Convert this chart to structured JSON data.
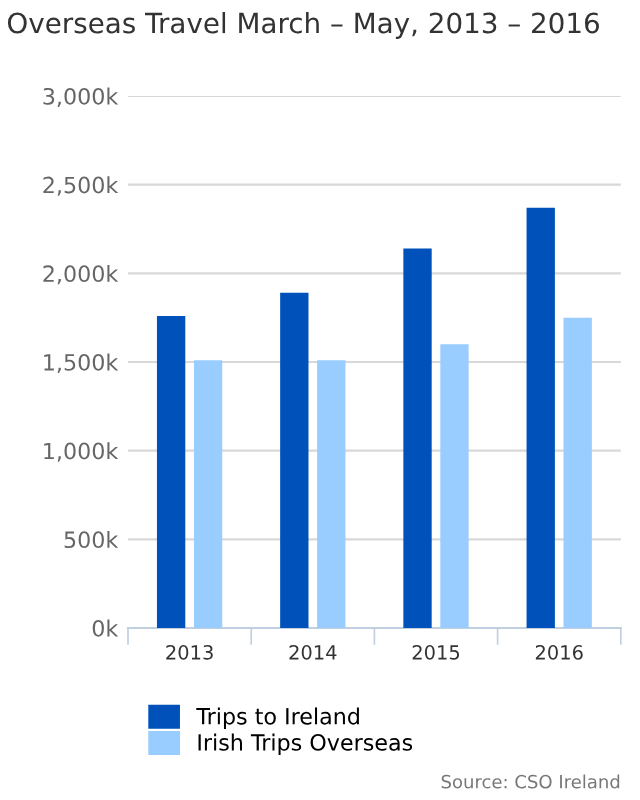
{
  "chart_data": {
    "type": "bar",
    "title": "Overseas Travel March – May, 2013 – 2016",
    "categories": [
      "2013",
      "2014",
      "2015",
      "2016"
    ],
    "series": [
      {
        "name": "Trips to Ireland",
        "color": "#0051ba",
        "values": [
          1760,
          1890,
          2140,
          2370
        ]
      },
      {
        "name": "Irish Trips Overseas",
        "color": "#99ccff",
        "values": [
          1510,
          1510,
          1600,
          1750
        ]
      }
    ],
    "ylim": [
      0,
      3000
    ],
    "yticks": [
      {
        "value": 0,
        "label": "0k"
      },
      {
        "value": 500,
        "label": "500k"
      },
      {
        "value": 1000,
        "label": "1,000k"
      },
      {
        "value": 1500,
        "label": "1,500k"
      },
      {
        "value": 2000,
        "label": "2,000k"
      },
      {
        "value": 2500,
        "label": "2,500k"
      },
      {
        "value": 3000,
        "label": "3,000k"
      }
    ],
    "grid": "y",
    "legend": "bottom left",
    "annotations": [
      "Source: CSO Ireland"
    ]
  }
}
